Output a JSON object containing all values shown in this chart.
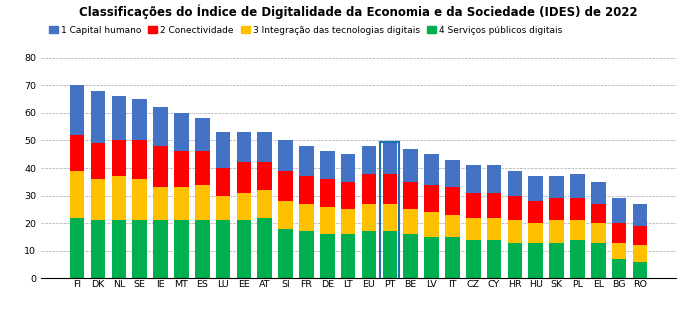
{
  "title": "Classificações do Índice de Digitalidade da Economia e da Sociedade (IDES) de 2022",
  "categories": [
    "FI",
    "DK",
    "NL",
    "SE",
    "IE",
    "MT",
    "ES",
    "LU",
    "EE",
    "AT",
    "SI",
    "FR",
    "DE",
    "LT",
    "EU",
    "PT",
    "BE",
    "LV",
    "IT",
    "CZ",
    "CY",
    "HR",
    "HU",
    "SK",
    "PL",
    "EL",
    "BG",
    "RO"
  ],
  "capital_humano": [
    18,
    19,
    16,
    15,
    14,
    14,
    12,
    13,
    11,
    11,
    11,
    11,
    10,
    10,
    10,
    11,
    12,
    11,
    10,
    10,
    10,
    9,
    9,
    8,
    9,
    8,
    9,
    8
  ],
  "conectividade": [
    13,
    13,
    13,
    14,
    15,
    13,
    12,
    10,
    11,
    10,
    11,
    10,
    10,
    10,
    11,
    11,
    10,
    10,
    10,
    9,
    9,
    9,
    8,
    8,
    8,
    7,
    7,
    7
  ],
  "integracao": [
    17,
    15,
    16,
    15,
    12,
    12,
    13,
    9,
    10,
    10,
    10,
    10,
    10,
    9,
    10,
    10,
    9,
    9,
    8,
    8,
    8,
    8,
    7,
    8,
    7,
    7,
    6,
    6
  ],
  "servicos": [
    22,
    21,
    21,
    21,
    21,
    21,
    21,
    21,
    21,
    22,
    18,
    17,
    16,
    16,
    17,
    17,
    16,
    15,
    15,
    14,
    14,
    13,
    13,
    13,
    14,
    13,
    7,
    6
  ],
  "highlight": "PT",
  "colors": {
    "capital_humano": "#4472C4",
    "conectividade": "#FF0000",
    "integracao": "#FFC000",
    "servicos": "#00B050"
  },
  "legend_labels": [
    "1 Capital humano",
    "2 Conectividade",
    "3 Integração das tecnologias digitais",
    "4 Serviços públicos digitais"
  ],
  "ylim": [
    0,
    80
  ],
  "yticks": [
    0,
    10,
    20,
    30,
    40,
    50,
    60,
    70,
    80
  ],
  "title_fontsize": 8.5,
  "tick_fontsize": 6.8,
  "legend_fontsize": 6.5,
  "bar_width": 0.7,
  "highlight_color": "#1F6EB5"
}
